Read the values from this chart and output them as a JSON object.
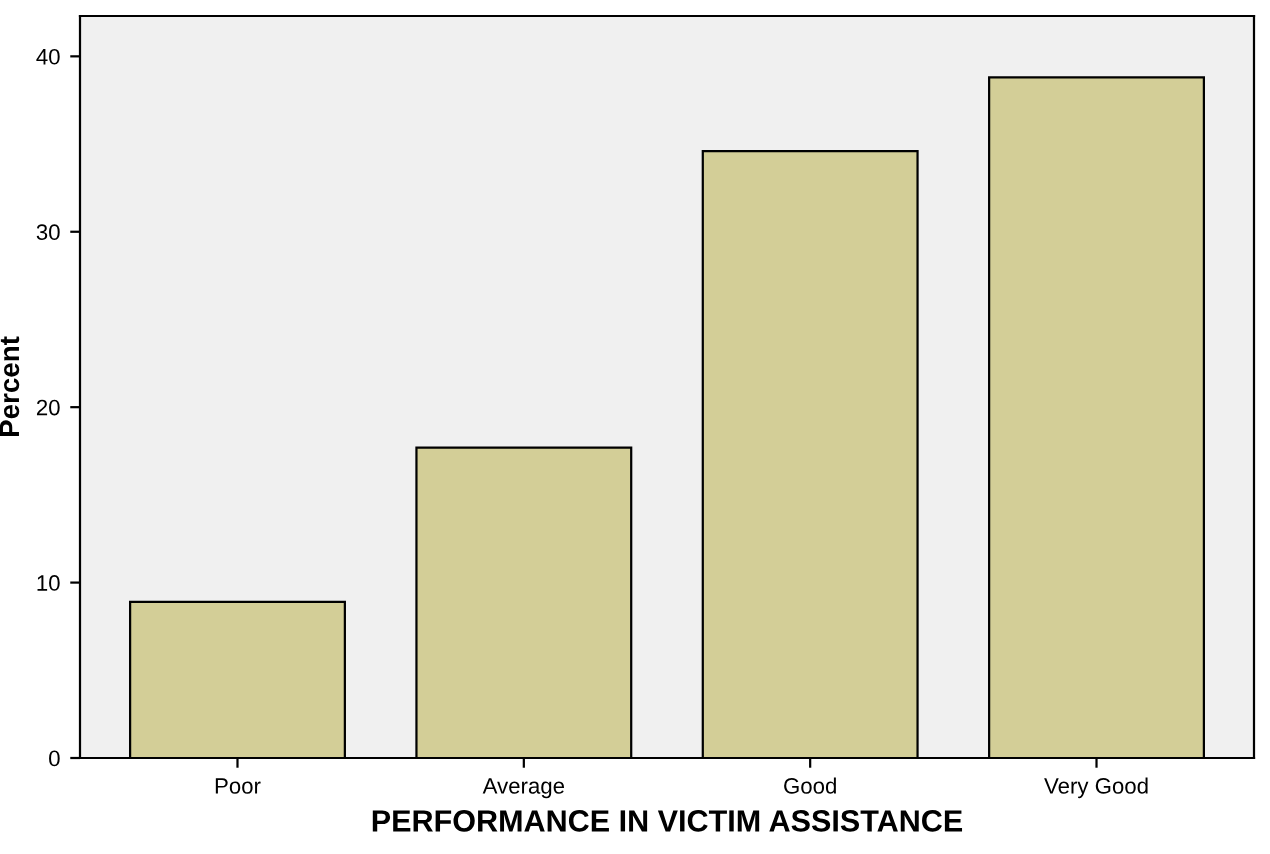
{
  "chart_data": {
    "type": "bar",
    "xlabel": "PERFORMANCE IN VICTIM ASSISTANCE",
    "ylabel": "Percent",
    "categories": [
      "Poor",
      "Average",
      "Good",
      "Very Good"
    ],
    "values": [
      8.9,
      17.7,
      34.6,
      38.8
    ],
    "color": "#d3ce97",
    "ylim": [
      0,
      42.3
    ],
    "yticks": [
      0,
      10,
      20,
      30,
      40
    ],
    "grid": false
  }
}
